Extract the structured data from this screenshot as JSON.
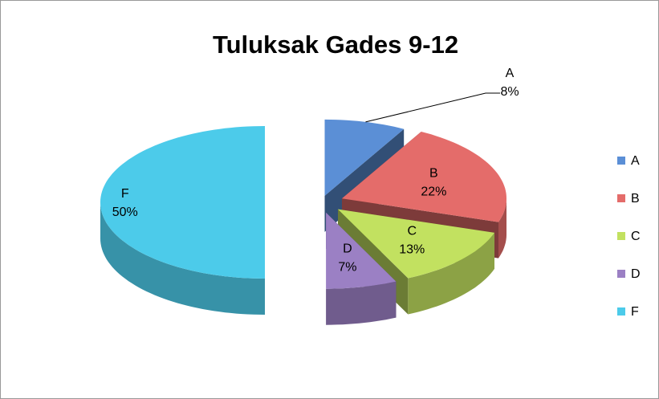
{
  "chart_data": {
    "type": "pie",
    "title": "Tuluksak Gades 9-12",
    "categories": [
      "A",
      "B",
      "C",
      "D",
      "F"
    ],
    "values": [
      8,
      22,
      13,
      7,
      50
    ],
    "value_labels": [
      "8%",
      "22%",
      "13%",
      "7%",
      "50%"
    ],
    "colors": [
      "#5b8fd6",
      "#e46c6a",
      "#c2e160",
      "#9b80c4",
      "#4ccbea"
    ],
    "legend": "right"
  }
}
